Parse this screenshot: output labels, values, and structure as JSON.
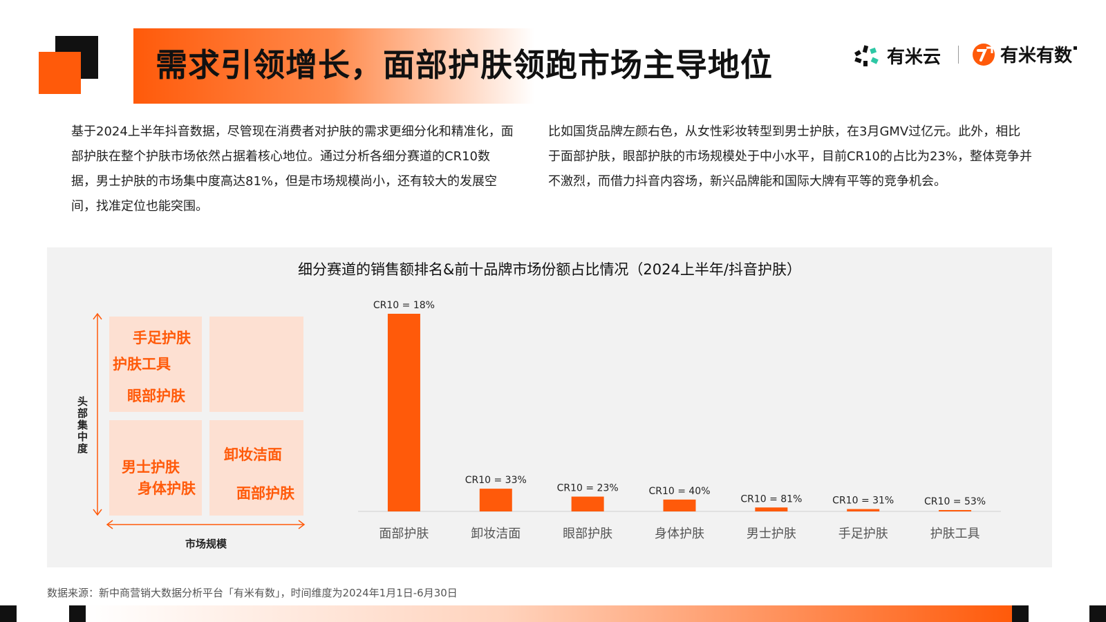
{
  "header": {
    "title": "需求引领增长，面部护肤领跑市场主导地位",
    "logo_left": "有米云",
    "logo_right": "有米有数"
  },
  "intro": {
    "left": "基于2024上半年抖音数据，尽管现在消费者对护肤的需求更细分化和精准化，面部护肤在整个护肤市场依然占据着核心地位。通过分析各细分赛道的CR10数据，男士护肤的市场集中度高达81%，但是市场规模尚小，还有较大的发展空间，找准定位也能突围。",
    "right": "比如国货品牌左颜右色，从女性彩妆转型到男士护肤，在3月GMV过亿元。此外，相比于面部护肤，眼部护肤的市场规模处于中小水平，目前CR10的占比为23%，整体竞争并不激烈，而借力抖音内容场，新兴品牌能和国际大牌有平等的竞争机会。"
  },
  "quadrant": {
    "y_axis_label": "头部集中度",
    "x_axis_label": "市场规模",
    "top_left": [
      "手足护肤",
      "护肤工具",
      "眼部护肤"
    ],
    "top_right": [],
    "bottom_left": [
      "男士护肤",
      "身体护肤"
    ],
    "bottom_right": [
      "卸妆洁面",
      "面部护肤"
    ]
  },
  "chart_data": {
    "type": "bar",
    "title": "细分赛道的销售额排名&前十品牌市场份额占比情况（2024上半年/抖音护肤）",
    "categories": [
      "面部护肤",
      "卸妆洁面",
      "眼部护肤",
      "身体护肤",
      "男士护肤",
      "手足护肤",
      "护肤工具"
    ],
    "values": [
      100,
      11.5,
      7.5,
      6,
      2,
      1.2,
      0.5
    ],
    "value_unit": "relative sales (no axis printed)",
    "labels": [
      "CR10 = 18%",
      "CR10 = 33%",
      "CR10 = 23%",
      "CR10 = 40%",
      "CR10 = 81%",
      "CR10 = 31%",
      "CR10 = 53%"
    ],
    "ylim": [
      0,
      100
    ],
    "grid": false,
    "color": "#ff5a0a"
  },
  "footer": {
    "source": "数据来源：新中商营销大数据分析平台「有米有数」，时间维度为2024年1月1日-6月30日"
  }
}
